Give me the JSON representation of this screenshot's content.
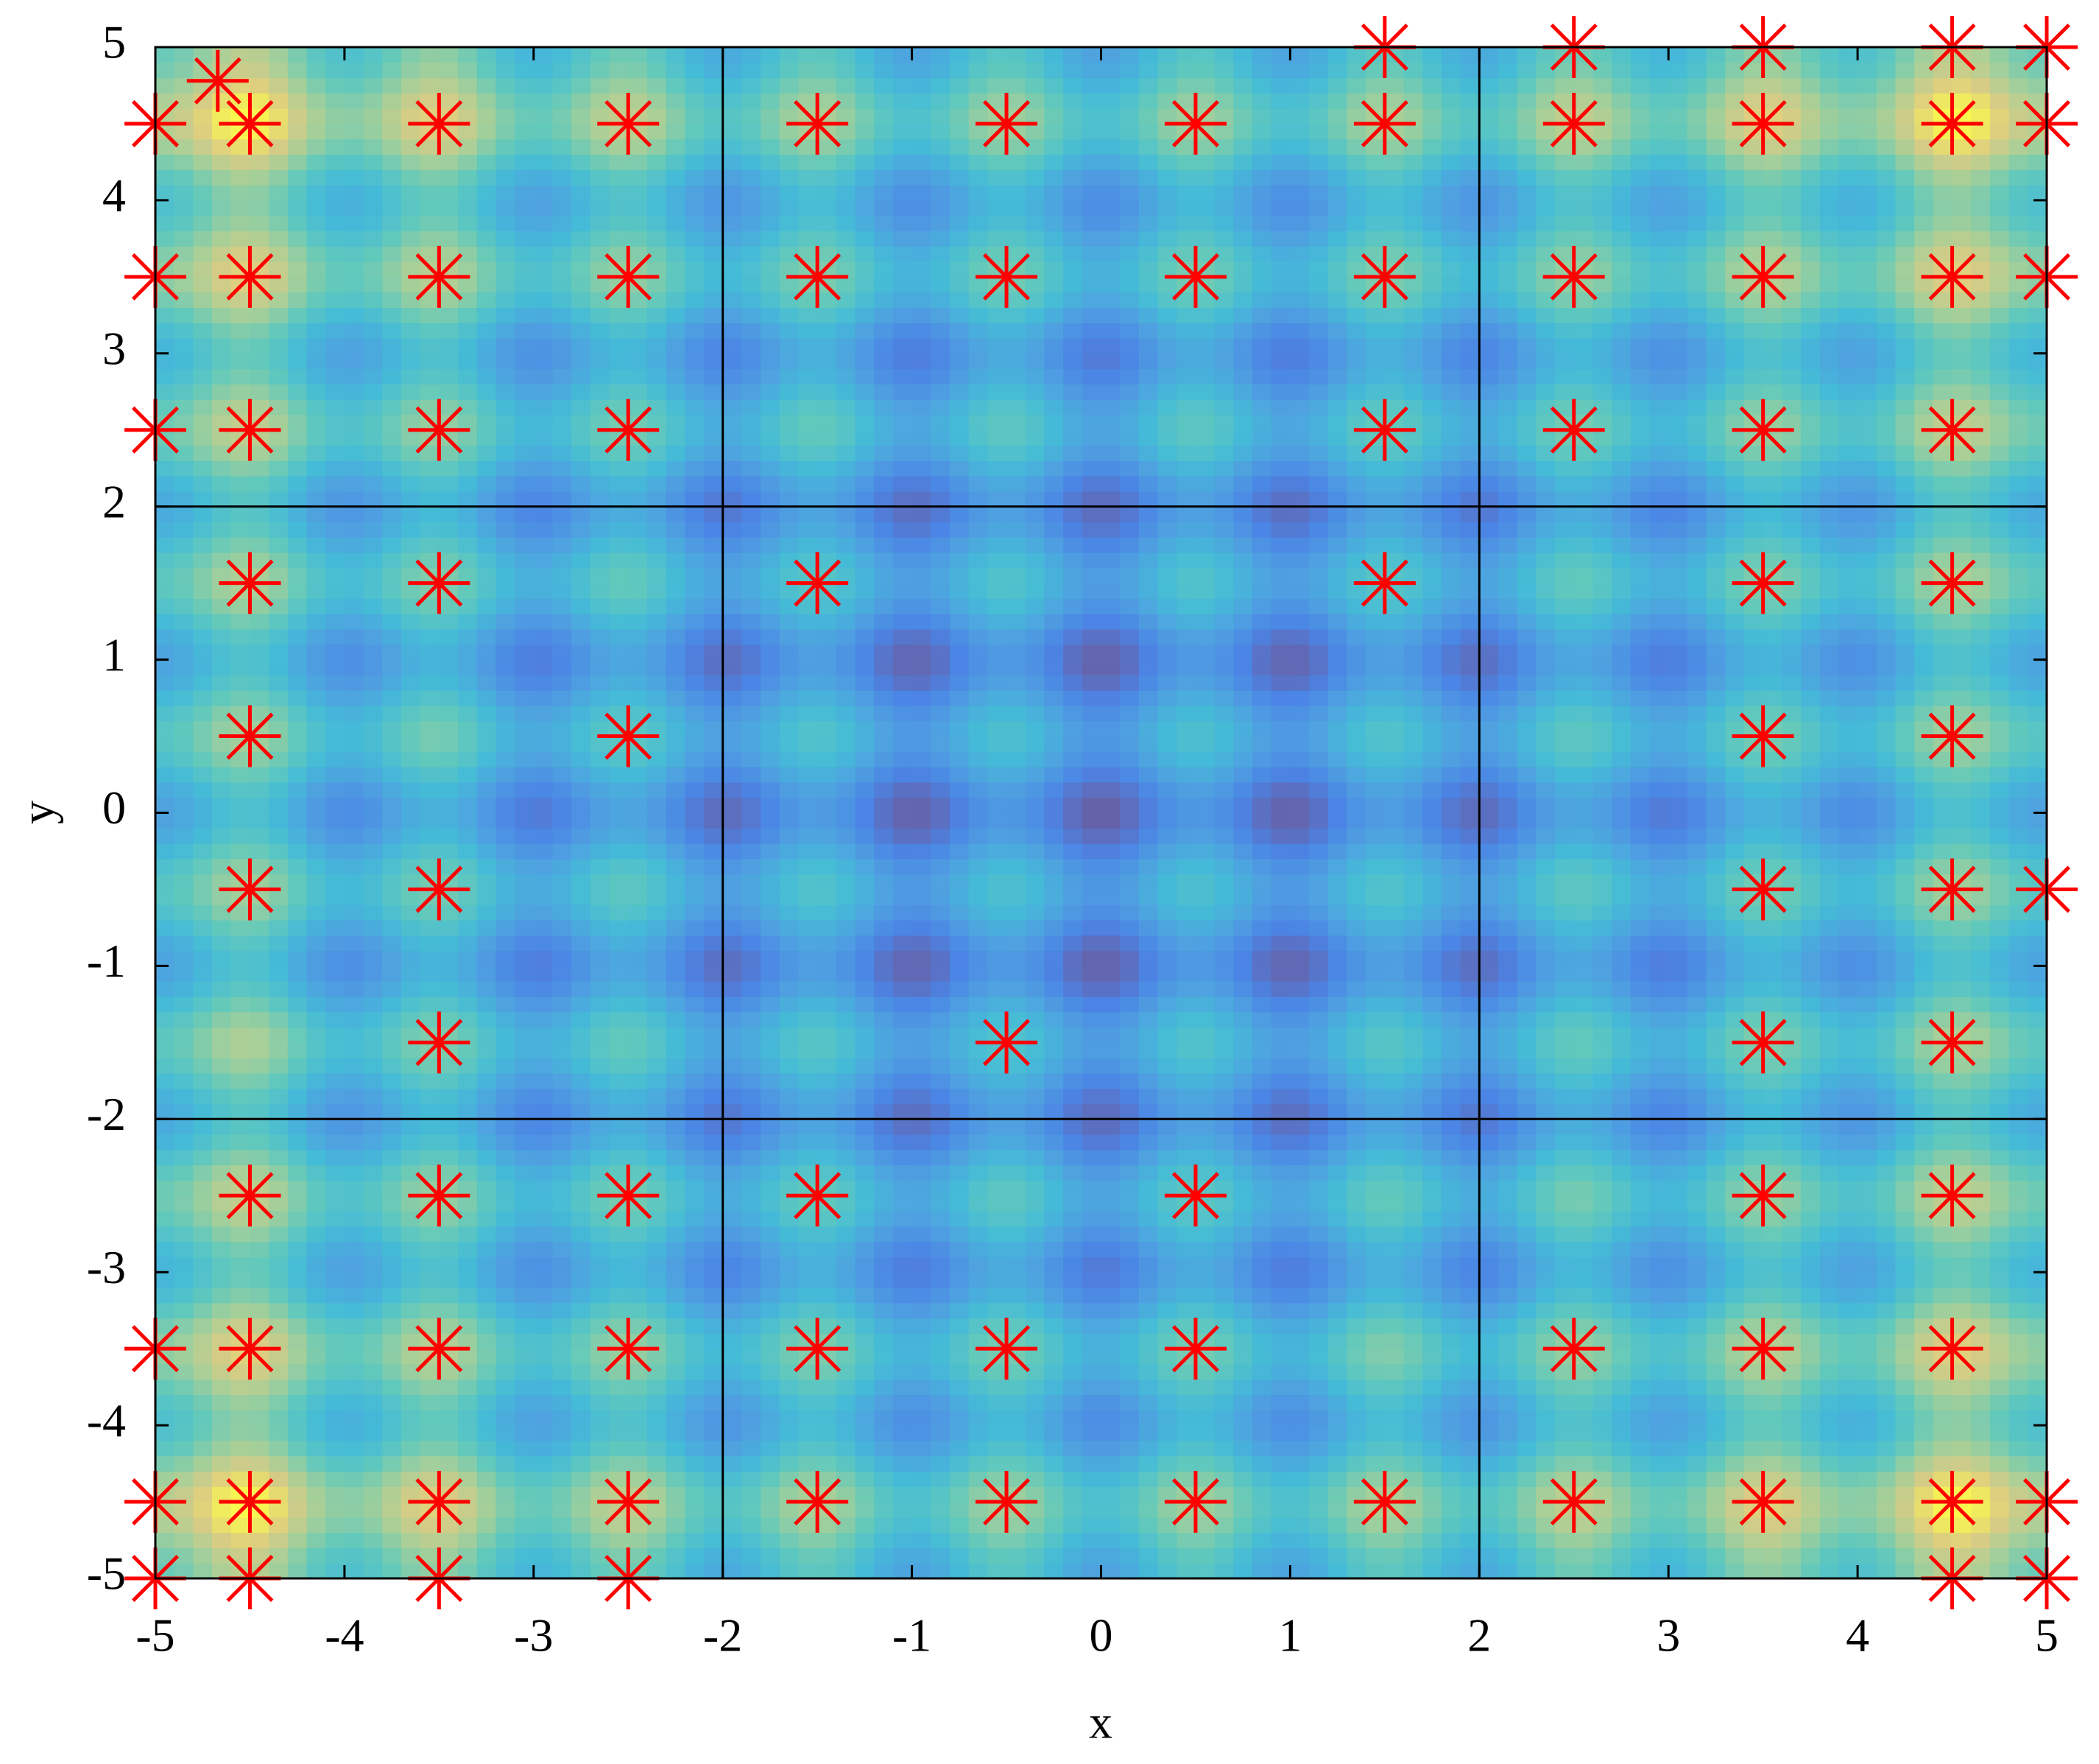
{
  "chart_data": {
    "type": "scatter",
    "xlabel": "x",
    "ylabel": "y",
    "xlim": [
      -5,
      5
    ],
    "ylim": [
      -5,
      5
    ],
    "xticks": [
      -5,
      -4,
      -3,
      -2,
      -1,
      0,
      1,
      2,
      3,
      4,
      5
    ],
    "yticks": [
      -5,
      -4,
      -3,
      -2,
      -1,
      0,
      1,
      2,
      3,
      4,
      5
    ],
    "xgrid": [
      -2,
      2
    ],
    "ygrid": [
      -2,
      2
    ],
    "color": "#ff0000",
    "x": [
      1.5,
      2.5,
      3.5,
      4.5,
      5,
      -4.67,
      -5,
      -4.5,
      -3.5,
      -2.5,
      -1.5,
      -0.5,
      0.5,
      1.5,
      2.5,
      3.5,
      4.5,
      5,
      -5,
      -4.5,
      -3.5,
      -2.5,
      -1.5,
      -0.5,
      0.5,
      1.5,
      2.5,
      3.5,
      4.5,
      5,
      -5,
      -4.5,
      -3.5,
      -2.5,
      1.5,
      2.5,
      3.5,
      4.5,
      -4.5,
      -3.5,
      -1.5,
      1.5,
      3.5,
      4.5,
      -4.5,
      -2.5,
      3.5,
      4.5,
      -4.5,
      -3.5,
      3.5,
      4.5,
      5,
      -3.5,
      -0.5,
      3.5,
      4.5,
      -4.5,
      -3.5,
      -2.5,
      -1.5,
      0.5,
      3.5,
      4.5,
      -5,
      -4.5,
      -3.5,
      -2.5,
      -1.5,
      -0.5,
      0.5,
      2.5,
      3.5,
      4.5,
      -5,
      -4.5,
      -3.5,
      -2.5,
      -1.5,
      -0.5,
      0.5,
      1.5,
      2.5,
      3.5,
      4.5,
      5,
      -5,
      -4.5,
      -3.5,
      -2.5,
      4.5,
      5
    ],
    "y": [
      5,
      5,
      5,
      5,
      5,
      4.78,
      4.5,
      4.5,
      4.5,
      4.5,
      4.5,
      4.5,
      4.5,
      4.5,
      4.5,
      4.5,
      4.5,
      4.5,
      3.5,
      3.5,
      3.5,
      3.5,
      3.5,
      3.5,
      3.5,
      3.5,
      3.5,
      3.5,
      3.5,
      3.5,
      2.5,
      2.5,
      2.5,
      2.5,
      2.5,
      2.5,
      2.5,
      2.5,
      1.5,
      1.5,
      1.5,
      1.5,
      1.5,
      1.5,
      0.5,
      0.5,
      0.5,
      0.5,
      -0.5,
      -0.5,
      -0.5,
      -0.5,
      -0.5,
      -1.5,
      -1.5,
      -1.5,
      -1.5,
      -2.5,
      -2.5,
      -2.5,
      -2.5,
      -2.5,
      -2.5,
      -2.5,
      -3.5,
      -3.5,
      -3.5,
      -3.5,
      -3.5,
      -3.5,
      -3.5,
      -3.5,
      -3.5,
      -3.5,
      -4.5,
      -4.5,
      -4.5,
      -4.5,
      -4.5,
      -4.5,
      -4.5,
      -4.5,
      -4.5,
      -4.5,
      -4.5,
      -4.5,
      -5,
      -5,
      -5,
      -5,
      -5,
      -5
    ]
  }
}
